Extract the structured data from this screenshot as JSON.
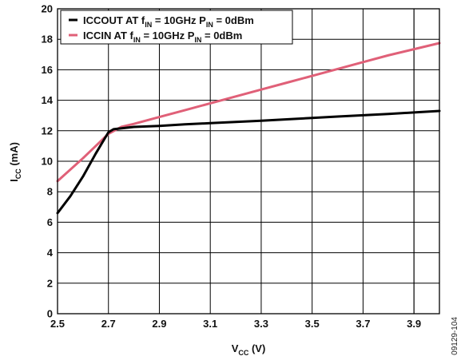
{
  "chart_data": {
    "type": "line",
    "xlabel": "VCC (V)",
    "ylabel": "ICC (mA)",
    "xlim": [
      2.5,
      4.0
    ],
    "ylim": [
      0,
      20
    ],
    "x_ticks": [
      2.5,
      2.7,
      2.9,
      3.1,
      3.3,
      3.5,
      3.7,
      3.9
    ],
    "x_tick_labels": [
      "2.5",
      "2.7",
      "2.9",
      "3.1",
      "3.3",
      "3.5",
      "3.7",
      "3.9"
    ],
    "y_ticks": [
      0,
      2,
      4,
      6,
      8,
      10,
      12,
      14,
      16,
      18,
      20
    ],
    "y_tick_labels": [
      "0",
      "2",
      "4",
      "6",
      "8",
      "10",
      "12",
      "14",
      "16",
      "18",
      "20"
    ],
    "grid": true,
    "legend_position": "top-left",
    "series": [
      {
        "name": "ICCOUT AT fIN = 10GHz PIN = 0dBm",
        "color": "#000000",
        "x": [
          2.5,
          2.55,
          2.6,
          2.65,
          2.7,
          2.72,
          2.8,
          2.9,
          3.0,
          3.1,
          3.2,
          3.3,
          3.4,
          3.5,
          3.6,
          3.7,
          3.8,
          3.9,
          4.0
        ],
        "y": [
          6.6,
          7.7,
          9.0,
          10.5,
          11.9,
          12.1,
          12.25,
          12.32,
          12.42,
          12.5,
          12.58,
          12.66,
          12.75,
          12.84,
          12.93,
          13.02,
          13.1,
          13.2,
          13.3
        ]
      },
      {
        "name": "ICCIN AT fIN = 10GHz PIN = 0dBm",
        "color": "#e06078",
        "x": [
          2.5,
          2.6,
          2.7,
          2.75,
          2.8,
          2.9,
          3.0,
          3.1,
          3.2,
          3.3,
          3.4,
          3.5,
          3.6,
          3.7,
          3.8,
          3.9,
          4.0
        ],
        "y": [
          8.7,
          10.2,
          11.8,
          12.25,
          12.45,
          12.9,
          13.35,
          13.8,
          14.25,
          14.7,
          15.15,
          15.6,
          16.05,
          16.5,
          16.95,
          17.35,
          17.75
        ]
      }
    ],
    "legend": [
      {
        "main": "ICCOUT AT f",
        "sub1": "IN",
        "mid": " = 10GHz P",
        "sub2": "IN",
        "tail": " = 0dBm",
        "color": "#000000"
      },
      {
        "main": "ICCIN AT f",
        "sub1": "IN",
        "mid": " = 10GHz P",
        "sub2": "IN",
        "tail": " = 0dBm",
        "color": "#e06078"
      }
    ],
    "axis_titles": {
      "x": {
        "main": "V",
        "sub": "CC",
        "tail": " (V)"
      },
      "y": {
        "main": "I",
        "sub": "CC",
        "tail": " (mA)"
      }
    }
  },
  "figure_id": "09129-104"
}
